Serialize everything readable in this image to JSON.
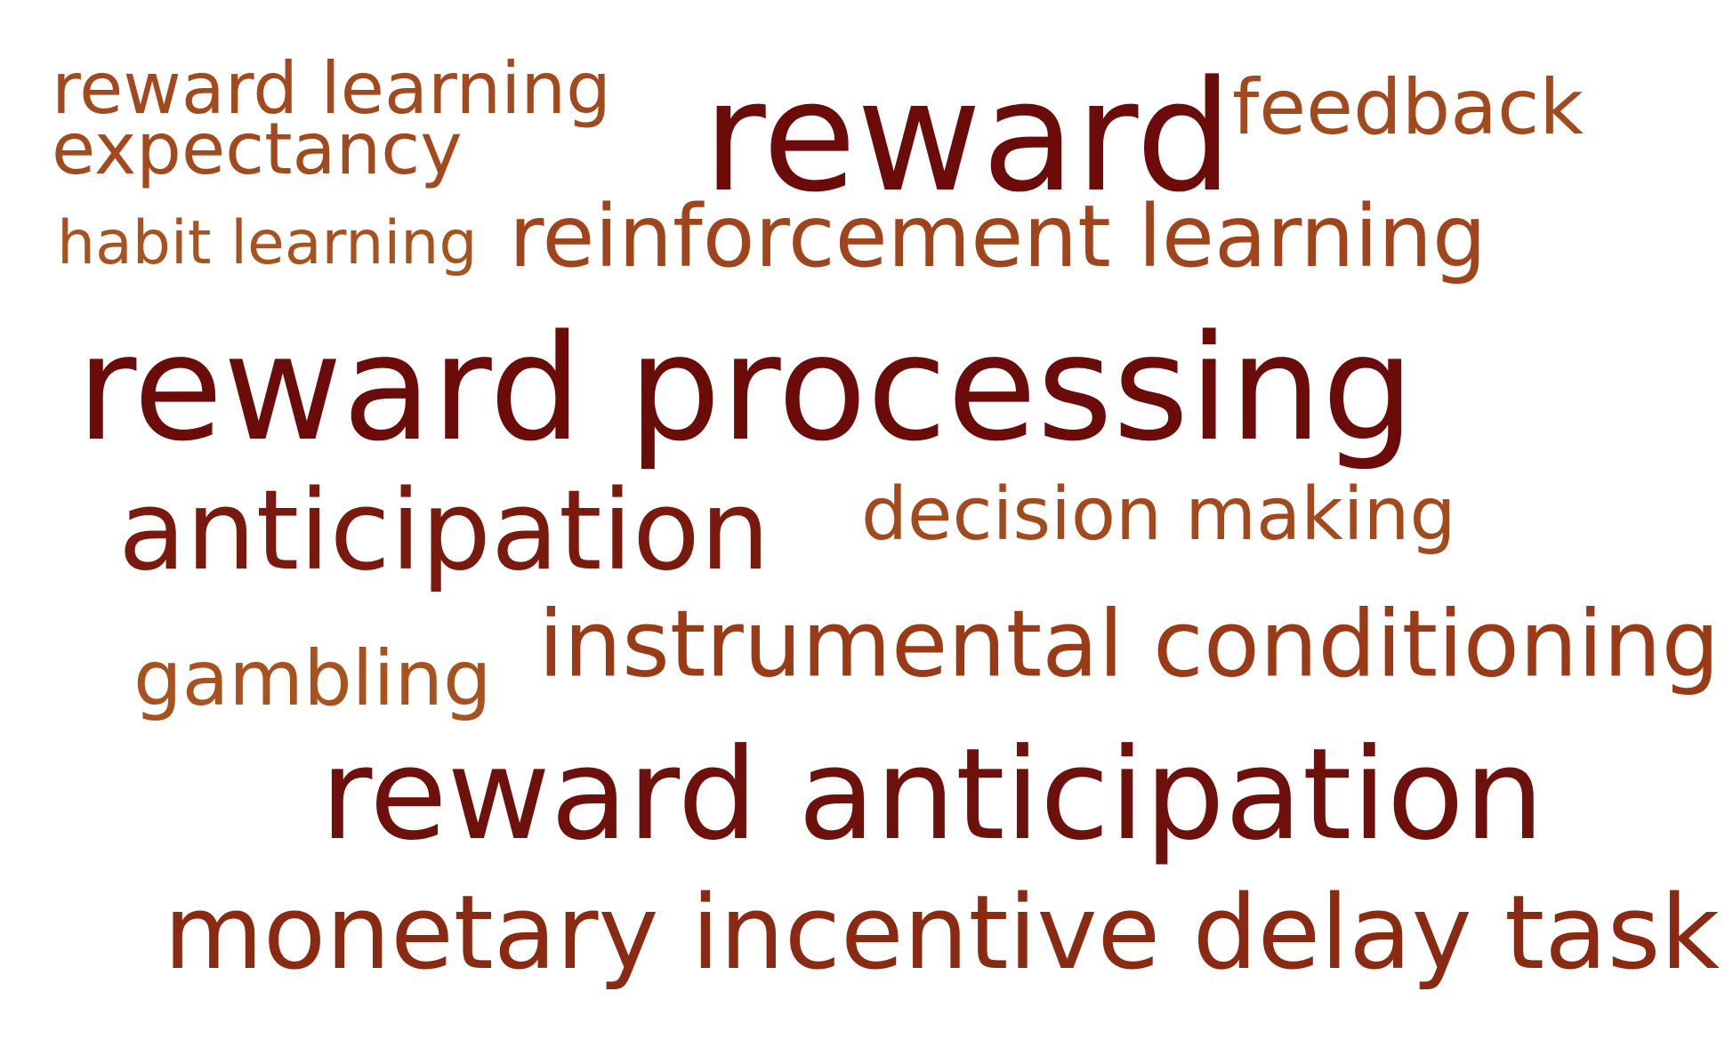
{
  "word_cloud": {
    "words": [
      {
        "text": "reward learning",
        "color": "#A24A1E"
      },
      {
        "text": "expectancy",
        "color": "#A24A1E"
      },
      {
        "text": "reward",
        "color": "#6B0C0A"
      },
      {
        "text": "feedback",
        "color": "#A24A1E"
      },
      {
        "text": "habit learning",
        "color": "#A8521F"
      },
      {
        "text": "reinforcement learning",
        "color": "#A0441B"
      },
      {
        "text": "reward processing",
        "color": "#6B0C0A"
      },
      {
        "text": "anticipation",
        "color": "#7A1A0E"
      },
      {
        "text": "decision making",
        "color": "#A24A1E"
      },
      {
        "text": "gambling",
        "color": "#A8521F"
      },
      {
        "text": "instrumental conditioning",
        "color": "#9A3A16"
      },
      {
        "text": "reward anticipation",
        "color": "#6E100B"
      },
      {
        "text": "monetary incentive delay task",
        "color": "#8A2A12"
      }
    ]
  }
}
